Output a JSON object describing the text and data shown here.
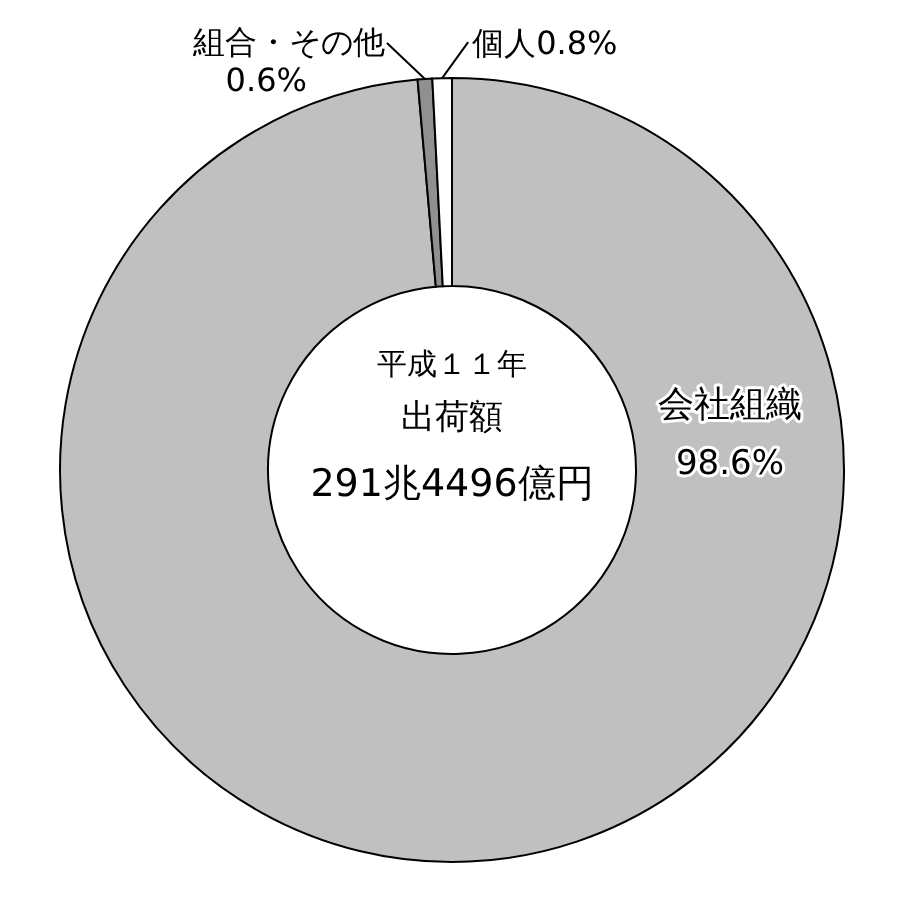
{
  "chart_data": {
    "type": "donut",
    "title": "平成１１年",
    "subtitle": "出荷額",
    "annotations": [
      "291兆4496億円"
    ],
    "categories": [
      "会社組織",
      "組合・その他",
      "個人"
    ],
    "values": [
      98.6,
      0.6,
      0.8
    ],
    "colors": [
      "#c0c0c0",
      "#909090",
      "#ffffff"
    ],
    "value_labels": [
      "98.6%",
      "0.6%",
      "0.8%"
    ]
  }
}
